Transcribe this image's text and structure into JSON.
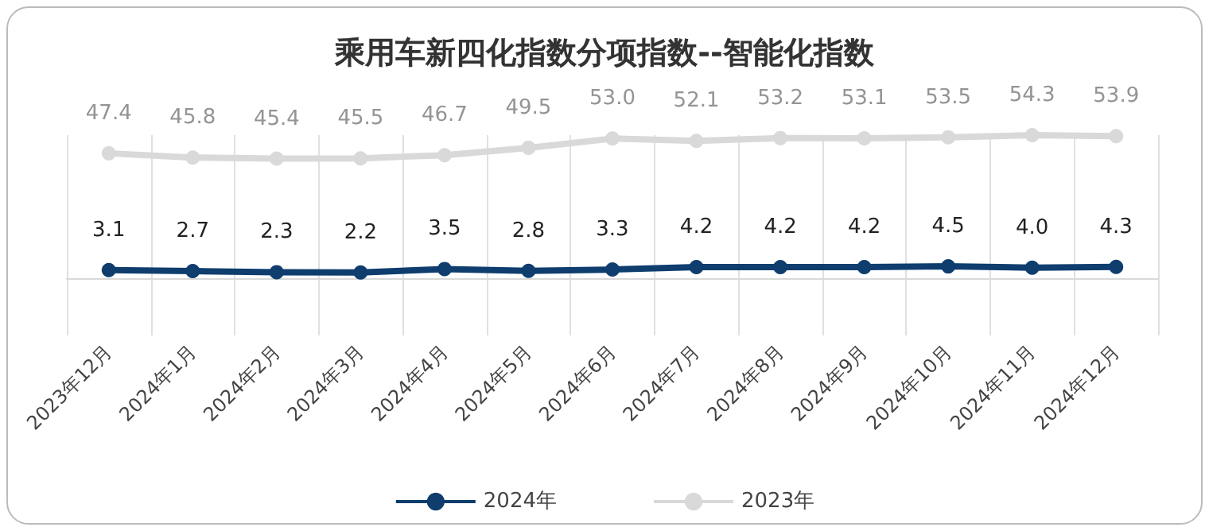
{
  "chart_data": {
    "type": "line",
    "title": "乘用车新四化指数分项指数--智能化指数",
    "categories": [
      "2023年12月",
      "2024年1月",
      "2024年2月",
      "2024年3月",
      "2024年4月",
      "2024年5月",
      "2024年6月",
      "2024年7月",
      "2024年8月",
      "2024年9月",
      "2024年10月",
      "2024年11月",
      "2024年12月"
    ],
    "series": [
      {
        "name": "2024年",
        "color": "#0e3d6e",
        "values": [
          3.1,
          2.7,
          2.3,
          2.2,
          3.5,
          2.8,
          3.3,
          4.2,
          4.2,
          4.2,
          4.5,
          4.0,
          4.3
        ],
        "value_labels": [
          "3.1",
          "2.7",
          "2.3",
          "2.2",
          "3.5",
          "2.8",
          "3.3",
          "4.2",
          "4.2",
          "4.2",
          "4.5",
          "4.0",
          "4.3"
        ]
      },
      {
        "name": "2023年",
        "color": "#d9d9d9",
        "values": [
          47.4,
          45.8,
          45.4,
          45.5,
          46.7,
          49.5,
          53.0,
          52.1,
          53.2,
          53.1,
          53.5,
          54.3,
          53.9
        ],
        "value_labels": [
          "47.4",
          "45.8",
          "45.4",
          "45.5",
          "46.7",
          "49.5",
          "53.0",
          "52.1",
          "53.2",
          "53.1",
          "53.5",
          "54.3",
          "53.9"
        ]
      }
    ],
    "grid": "x",
    "legend": "bottom",
    "marker": "circle",
    "line_style": "solid"
  }
}
